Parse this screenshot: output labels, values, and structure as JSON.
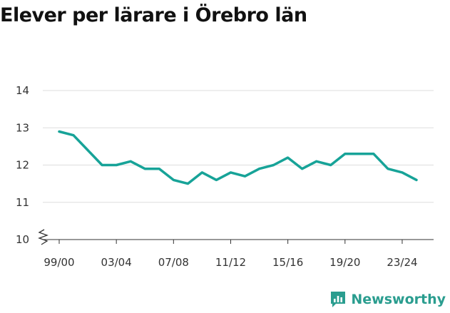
{
  "title": "Elever per lärare i Örebro län",
  "brand": {
    "name": "Newsworthy",
    "accent": "#2a9d8f",
    "icon": "newsworthy-logo-icon"
  },
  "chart_data": {
    "type": "line",
    "title": "Elever per lärare i Örebro län",
    "xlabel": "",
    "ylabel": "",
    "ylim": [
      10,
      14
    ],
    "yticks": [
      10,
      11,
      12,
      13,
      14
    ],
    "grid": true,
    "axis_break": true,
    "line_color": "#17a398",
    "x": [
      "99/00",
      "00/01",
      "01/02",
      "02/03",
      "03/04",
      "04/05",
      "05/06",
      "06/07",
      "07/08",
      "08/09",
      "09/10",
      "10/11",
      "11/12",
      "12/13",
      "13/14",
      "14/15",
      "15/16",
      "16/17",
      "17/18",
      "18/19",
      "19/20",
      "20/21",
      "21/22",
      "22/23",
      "23/24",
      "24/25"
    ],
    "xticks": [
      "99/00",
      "03/04",
      "07/08",
      "11/12",
      "15/16",
      "19/20",
      "23/24"
    ],
    "series": [
      {
        "name": "Elever per lärare",
        "values": [
          12.9,
          12.8,
          12.4,
          12.0,
          12.0,
          12.1,
          11.9,
          11.9,
          11.6,
          11.5,
          11.8,
          11.6,
          11.8,
          11.7,
          11.9,
          12.0,
          12.2,
          11.9,
          12.1,
          12.0,
          12.3,
          12.3,
          12.3,
          11.9,
          11.8,
          11.6
        ]
      }
    ]
  }
}
